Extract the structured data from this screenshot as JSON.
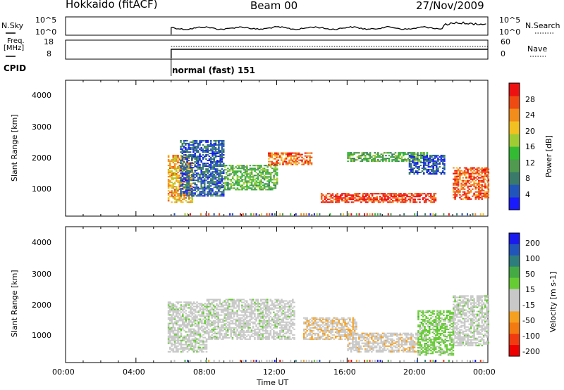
{
  "header": {
    "station": "Hokkaido (fitACF)",
    "beam": "Beam 00",
    "date": "27/Nov/2009"
  },
  "top_panel": {
    "left_label": "N.Sky",
    "right_label": "N.Search",
    "left_ticks": [
      "10^5",
      "10^0"
    ],
    "right_ticks": [
      "10^5",
      "10^0"
    ]
  },
  "freq_panel": {
    "left_label_1": "Freq.",
    "left_label_2": "[MHz]",
    "right_label": "Nave",
    "left_ticks": [
      "18",
      "8"
    ],
    "right_ticks": [
      "60",
      "0"
    ]
  },
  "cpid": {
    "label": "CPID",
    "value": "normal (fast) 151"
  },
  "colors": {
    "power": [
      "#1a1aff",
      "#2255bb",
      "#3a7a6a",
      "#4f9a4f",
      "#33bb33",
      "#a0cc33",
      "#f2c020",
      "#f28c1a",
      "#ef4a12",
      "#ee1111"
    ],
    "velocity": [
      "#ee0000",
      "#f03a10",
      "#f27a10",
      "#f6a020",
      "#c8c8c8",
      "#c8c8c8",
      "#66cc33",
      "#44aa44",
      "#2d7d7d",
      "#2255bb",
      "#1a1aee"
    ],
    "velocity_gray": "#c8c8c8"
  },
  "chart_data": [
    {
      "type": "heatmap",
      "panel": "power",
      "ylabel": "Slant Range [km]",
      "y_ticks": [
        "1000",
        "2000",
        "3000",
        "4000"
      ],
      "ylim": [
        180,
        4500
      ],
      "colorbar_label": "Power [dB]",
      "colorbar_ticks": [
        "4",
        "8",
        "12",
        "16",
        "20",
        "24",
        "28"
      ],
      "colorbar_range": [
        0,
        32
      ],
      "echo_regions": [
        {
          "t_start": 5.8,
          "t_end": 7.2,
          "r_start": 600,
          "r_end": 2100,
          "power": 22
        },
        {
          "t_start": 6.5,
          "t_end": 9.0,
          "r_start": 800,
          "r_end": 2600,
          "power": 6
        },
        {
          "t_start": 9.0,
          "t_end": 12.0,
          "r_start": 1000,
          "r_end": 1800,
          "power": 14
        },
        {
          "t_start": 11.5,
          "t_end": 14.0,
          "r_start": 1800,
          "r_end": 2200,
          "power": 26
        },
        {
          "t_start": 14.5,
          "t_end": 21.0,
          "r_start": 600,
          "r_end": 900,
          "power": 29
        },
        {
          "t_start": 16.0,
          "t_end": 20.5,
          "r_start": 1900,
          "r_end": 2200,
          "power": 13
        },
        {
          "t_start": 19.5,
          "t_end": 21.5,
          "r_start": 1500,
          "r_end": 2100,
          "power": 5
        },
        {
          "t_start": 22.0,
          "t_end": 24.0,
          "r_start": 700,
          "r_end": 1700,
          "power": 27
        }
      ]
    },
    {
      "type": "heatmap",
      "panel": "velocity",
      "ylabel": "Slant Range [km]",
      "y_ticks": [
        "1000",
        "2000",
        "3000",
        "4000"
      ],
      "ylim": [
        180,
        4500
      ],
      "colorbar_label": "Velocity [m s-1]",
      "colorbar_ticks": [
        "200",
        "100",
        "50",
        "15",
        "-15",
        "-50",
        "-100",
        "-200"
      ],
      "colorbar_range": [
        -250,
        250
      ],
      "echo_regions": [
        {
          "t_start": 5.8,
          "t_end": 8.0,
          "r_start": 500,
          "r_end": 2100,
          "velocity": 0
        },
        {
          "t_start": 8.0,
          "t_end": 13.0,
          "r_start": 900,
          "r_end": 2200,
          "velocity": 0
        },
        {
          "t_start": 13.5,
          "t_end": 16.5,
          "r_start": 900,
          "r_end": 1600,
          "velocity": -60
        },
        {
          "t_start": 16.0,
          "t_end": 20.0,
          "r_start": 500,
          "r_end": 1100,
          "velocity": -50
        },
        {
          "t_start": 20.0,
          "t_end": 22.0,
          "r_start": 400,
          "r_end": 1800,
          "velocity": 40
        },
        {
          "t_start": 22.0,
          "t_end": 24.0,
          "r_start": 700,
          "r_end": 2300,
          "velocity": 0
        }
      ]
    }
  ],
  "x_axis": {
    "label": "Time UT",
    "ticks": [
      "00:00",
      "04:00",
      "08:00",
      "12:00",
      "16:00",
      "20:00",
      "00:00"
    ],
    "range_hours": [
      0,
      24
    ]
  }
}
